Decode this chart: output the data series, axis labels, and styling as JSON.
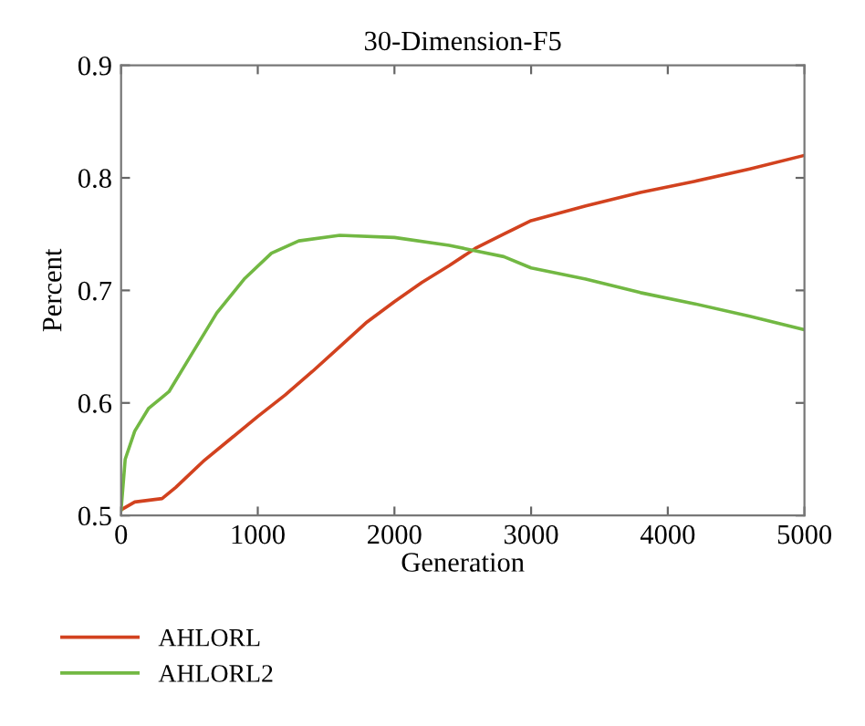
{
  "chart_data": {
    "type": "line",
    "title": "30-Dimension-F5",
    "xlabel": "Generation",
    "ylabel": "Percent",
    "xlim": [
      0,
      5000
    ],
    "xticks": [
      0,
      1000,
      2000,
      3000,
      4000,
      5000
    ],
    "ylim": [
      0.5,
      0.9
    ],
    "yticks": [
      0.5,
      0.6,
      0.7,
      0.8,
      0.9
    ],
    "legend": "bottom",
    "grid": false,
    "line_style": "solid",
    "series": [
      {
        "name": "AHLORL",
        "color": "#d2421f",
        "x": [
          0,
          100,
          300,
          400,
          600,
          800,
          1000,
          1200,
          1400,
          1600,
          1800,
          2000,
          2200,
          2400,
          2600,
          2800,
          3000,
          3400,
          3800,
          4200,
          4600,
          5000
        ],
        "values": [
          0.505,
          0.512,
          0.515,
          0.525,
          0.548,
          0.568,
          0.588,
          0.607,
          0.628,
          0.65,
          0.672,
          0.69,
          0.707,
          0.722,
          0.738,
          0.75,
          0.762,
          0.775,
          0.787,
          0.797,
          0.808,
          0.82
        ]
      },
      {
        "name": "AHLORL2",
        "color": "#72b843",
        "x": [
          0,
          30,
          100,
          200,
          300,
          350,
          500,
          700,
          900,
          1100,
          1300,
          1600,
          2000,
          2400,
          2600,
          2800,
          3000,
          3400,
          3800,
          4200,
          4600,
          5000
        ],
        "values": [
          0.505,
          0.55,
          0.575,
          0.595,
          0.605,
          0.61,
          0.64,
          0.68,
          0.71,
          0.733,
          0.744,
          0.749,
          0.747,
          0.74,
          0.735,
          0.73,
          0.72,
          0.71,
          0.698,
          0.688,
          0.677,
          0.665
        ]
      }
    ]
  }
}
